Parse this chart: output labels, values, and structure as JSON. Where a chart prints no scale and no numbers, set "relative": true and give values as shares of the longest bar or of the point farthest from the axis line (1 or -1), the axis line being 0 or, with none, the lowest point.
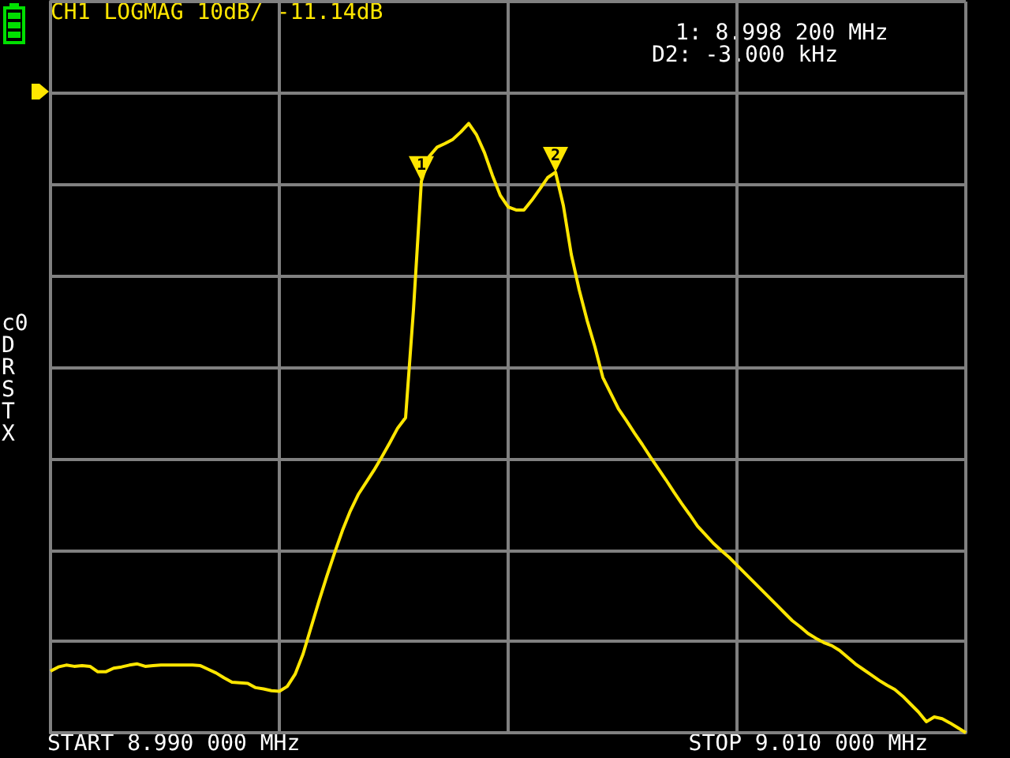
{
  "chart_data": {
    "type": "line",
    "title": "CH1 LOGMAG 10dB/ -11.14dB",
    "relative": true,
    "grid": true,
    "marker": "none",
    "line_style": "solid",
    "categories": [
      null,
      null,
      null,
      null,
      null,
      null,
      null,
      null,
      null,
      null,
      null,
      null,
      null,
      null,
      null,
      null,
      null,
      null,
      null,
      null,
      null,
      null,
      null,
      null,
      null,
      null,
      null,
      null,
      null,
      null,
      null,
      null,
      null,
      null,
      null,
      null,
      null,
      null,
      null,
      null,
      null,
      null,
      null,
      null,
      null,
      null,
      null,
      null,
      null,
      null,
      null,
      null,
      null,
      null,
      null,
      null,
      null,
      null,
      null,
      null,
      null,
      null,
      null,
      null,
      null,
      null,
      null,
      null,
      null,
      null,
      null,
      null,
      null,
      null,
      null,
      null,
      null,
      null,
      null,
      null,
      null,
      null,
      null,
      null,
      null,
      null,
      null,
      null,
      null,
      null,
      null,
      null,
      null,
      null,
      null,
      null,
      null,
      null,
      null,
      null,
      null,
      null,
      null,
      null,
      null,
      null,
      null,
      null,
      null,
      null,
      null,
      null,
      null,
      null,
      null,
      null,
      null
    ],
    "series": [
      {
        "color": "#ffe600",
        "values": [
          0.101,
          0.108,
          0.111,
          0.109,
          0.11,
          0.109,
          0.1,
          0.1,
          0.106,
          0.108,
          0.111,
          0.113,
          0.109,
          0.11,
          0.111,
          0.111,
          0.111,
          0.111,
          0.111,
          0.11,
          0.104,
          0.098,
          0.09,
          0.083,
          0.082,
          0.081,
          0.074,
          0.072,
          0.069,
          0.068,
          0.076,
          0.096,
          0.129,
          0.172,
          0.215,
          0.256,
          0.295,
          0.332,
          0.364,
          0.391,
          0.411,
          0.431,
          0.453,
          0.476,
          0.5,
          0.517,
          0.694,
          0.905,
          0.946,
          0.961,
          0.967,
          0.974,
          0.986,
          1,
          0.981,
          0.952,
          0.915,
          0.882,
          0.863,
          0.858,
          0.858,
          0.874,
          0.892,
          0.911,
          0.92,
          0.865,
          0.785,
          0.727,
          0.677,
          0.633,
          0.583,
          0.557,
          0.531,
          0.512,
          0.492,
          0.473,
          0.453,
          0.434,
          0.415,
          0.395,
          0.376,
          0.358,
          0.339,
          0.325,
          0.311,
          0.299,
          0.288,
          0.275,
          0.262,
          0.249,
          0.236,
          0.223,
          0.21,
          0.197,
          0.184,
          0.174,
          0.163,
          0.155,
          0.148,
          0.143,
          0.135,
          0.124,
          0.113,
          0.104,
          0.095,
          0.086,
          0.078,
          0.071,
          0.06,
          0.047,
          0.034,
          0.018,
          0.026,
          0.023,
          0.016,
          0.008,
          0
        ]
      }
    ],
    "annotations": [
      {
        "text": "1",
        "y": 0.905
      },
      {
        "text": "2",
        "y": 0.92
      },
      "1: 8.998 200 MHz",
      "D2: -3.000 kHz",
      "c0\nD\nR\nS\nT\nX",
      "START 8.990 000 MHz",
      "STOP 9.010 000 MHz"
    ]
  }
}
